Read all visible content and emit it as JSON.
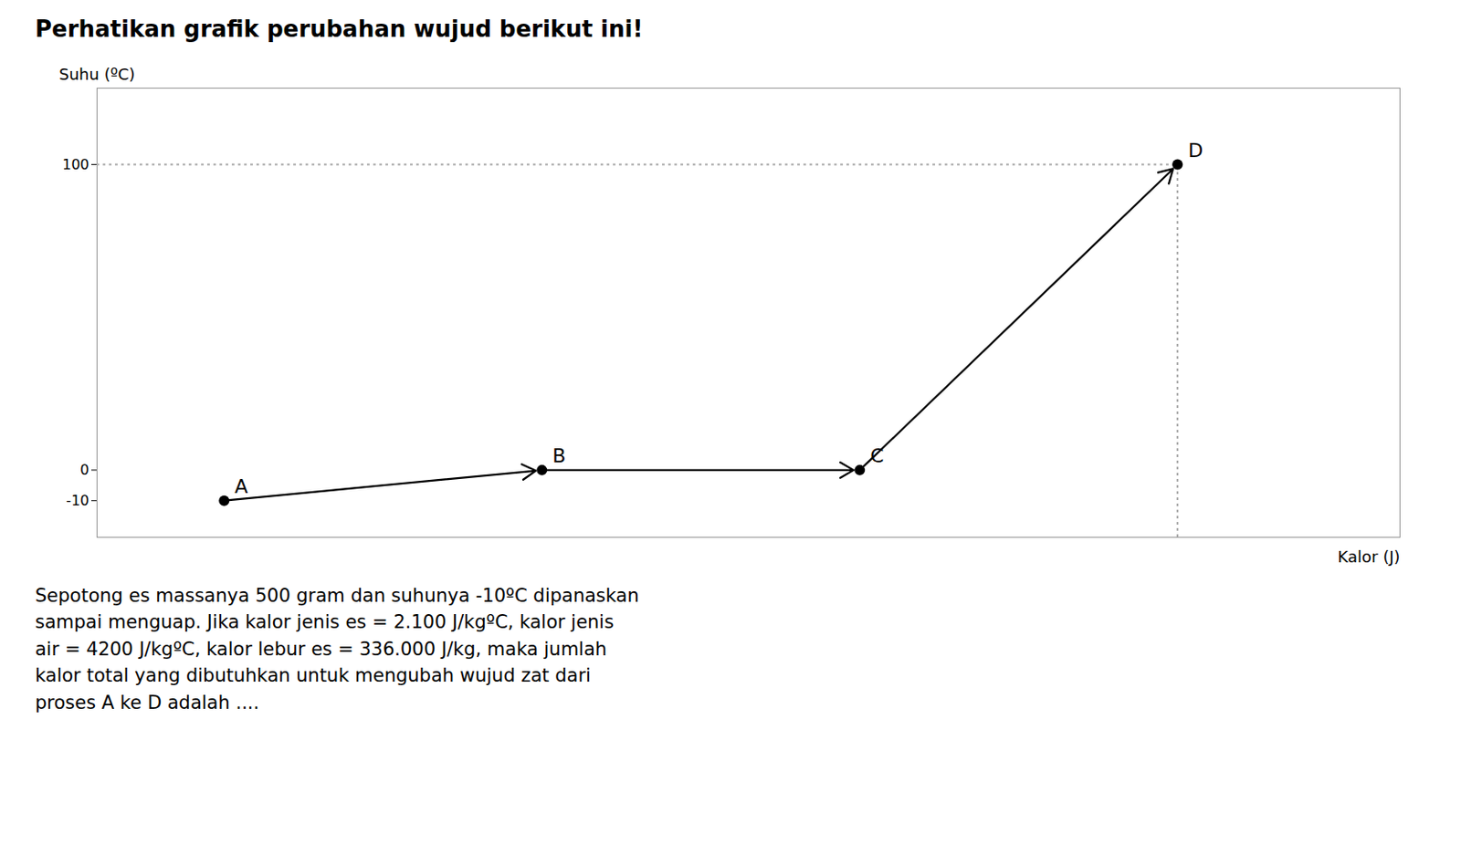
{
  "chart_data": {
    "type": "line",
    "title": "Perhatikan grafik perubahan wujud berikut ini!",
    "xlabel": "Kalor (J)",
    "ylabel": "Suhu (ºC)",
    "x": [
      0,
      1,
      2,
      3
    ],
    "values": [
      -10,
      0,
      0,
      100
    ],
    "point_labels": [
      "A",
      "B",
      "C",
      "D"
    ],
    "color": "#000000",
    "marker": "circle",
    "xlim": [
      -0.4,
      3.7
    ],
    "ylim": [
      -22,
      125
    ],
    "yticks": [
      -10,
      0,
      100
    ],
    "tick_labels": "y",
    "grid": false,
    "caption": [
      "Sepotong es massanya 500 gram dan suhunya -10ºC dipanaskan",
      "sampai menguap. Jika kalor jenis es = 2.100 J/kgºC, kalor jenis",
      "air = 4200 J/kgºC, kalor lebur es = 336.000 J/kg, maka jumlah",
      "kalor total yang dibutuhkan untuk mengubah wujud zat dari",
      "proses A ke D adalah ...."
    ]
  }
}
